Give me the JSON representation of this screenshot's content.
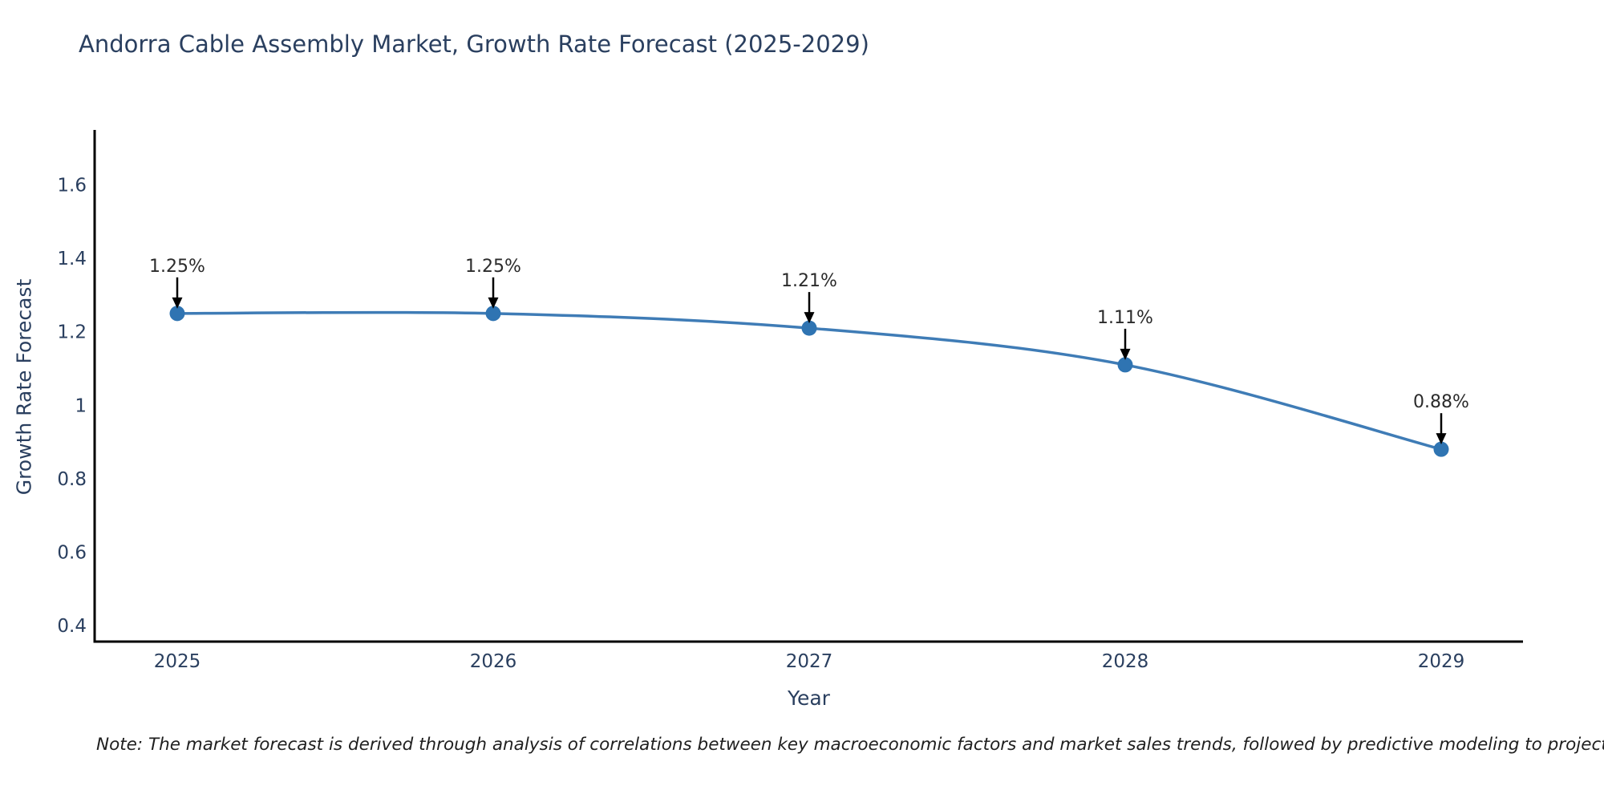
{
  "note": {
    "text": "Note: The market forecast is derived through analysis of correlations between key macroeconomic factors and market sales trends, followed by predictive modeling to project future sales"
  },
  "chart_data": {
    "type": "line",
    "title": "Andorra Cable Assembly Market, Growth Rate Forecast (2025-2029)",
    "xlabel": "Year",
    "ylabel": "Growth Rate Forecast",
    "x": [
      2025,
      2026,
      2027,
      2028,
      2029
    ],
    "series": [
      {
        "name": "Growth Rate Forecast",
        "values": [
          1.25,
          1.25,
          1.21,
          1.11,
          0.88
        ]
      }
    ],
    "point_labels": [
      "1.25%",
      "1.25%",
      "1.21%",
      "1.11%",
      "0.88%"
    ],
    "xticks": [
      "2025",
      "2026",
      "2027",
      "2028",
      "2029"
    ],
    "yticks": [
      "1.6",
      "1.4",
      "1.2",
      "1",
      "0.8",
      "0.6",
      "0.4"
    ],
    "ytick_values": [
      1.6,
      1.4,
      1.2,
      1,
      0.8,
      0.6,
      0.4
    ],
    "ylim": [
      0.356,
      1.75
    ],
    "grid": false,
    "legend": "none",
    "line_shape": "spline",
    "annotation_arrows": true,
    "colors": {
      "line": "#3f7cb6",
      "marker": "#2f74b2",
      "axis": "#000000",
      "tick_text": "#2a3f5f",
      "annotation_text": "#2b2b2b",
      "arrow": "#000000"
    }
  }
}
